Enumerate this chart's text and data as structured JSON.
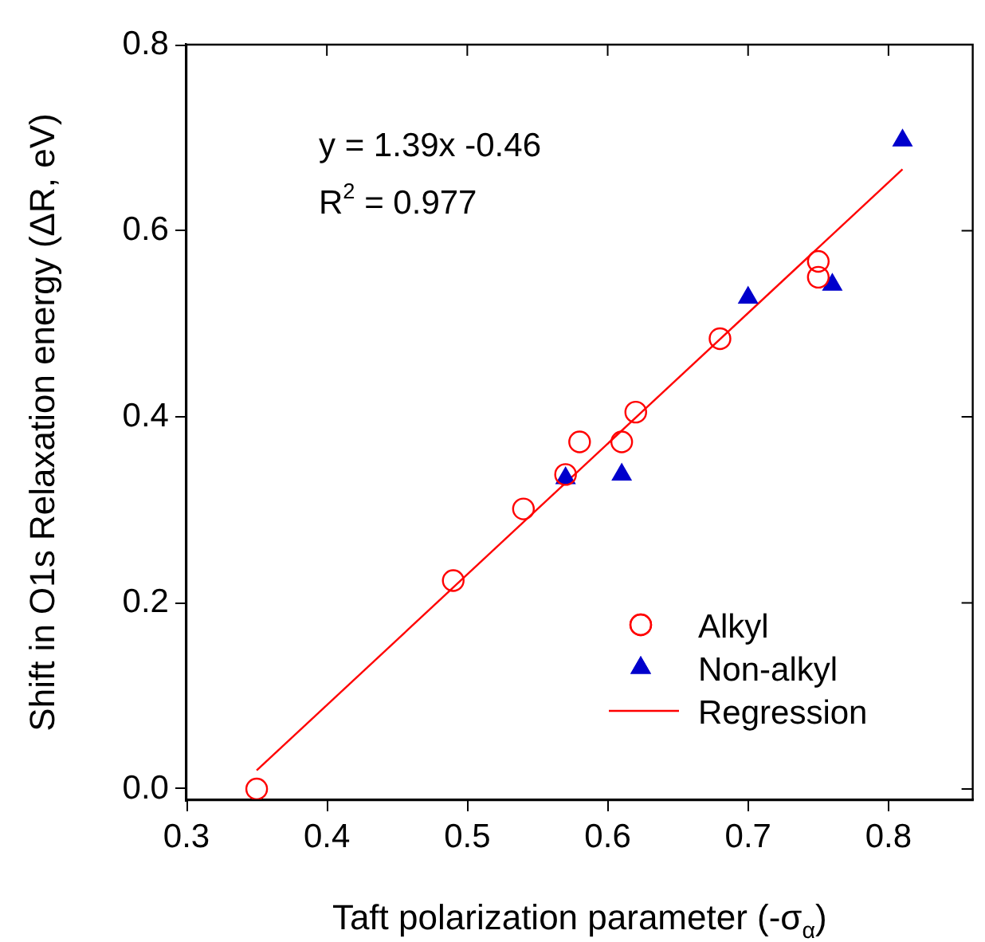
{
  "chart_data": {
    "type": "scatter",
    "xlabel": "Taft polarization parameter (-σ$_{α}$)",
    "ylabel": "Shift in O1s Relaxation energy (ΔR, eV)",
    "annotations": [
      "y = 1.39x -0.46",
      "R$^{2}$ = 0.977"
    ],
    "xlim": [
      0.3,
      0.86
    ],
    "xticks": [
      {
        "value": 0.3,
        "label": "0.3"
      },
      {
        "value": 0.4,
        "label": "0.4"
      },
      {
        "value": 0.5,
        "label": "0.5"
      },
      {
        "value": 0.6,
        "label": "0.6"
      },
      {
        "value": 0.7,
        "label": "0.7"
      },
      {
        "value": 0.8,
        "label": "0.8"
      }
    ],
    "ylim": [
      -0.012,
      0.8
    ],
    "yticks": [
      {
        "value": 0,
        "label": "0.0"
      },
      {
        "value": 0.2,
        "label": "0.2"
      },
      {
        "value": 0.4,
        "label": "0.4"
      },
      {
        "value": 0.6,
        "label": "0.6"
      },
      {
        "value": 0.8,
        "label": "0.8"
      }
    ],
    "grid": false,
    "legend": "bottom right",
    "series": [
      {
        "name": "Alkyl",
        "type": "scatter",
        "marker": "circle",
        "color": "#ff0000",
        "x": [
          0.35,
          0.49,
          0.54,
          0.57,
          0.58,
          0.61,
          0.62,
          0.68,
          0.75,
          0.75
        ],
        "values": [
          0.0,
          0.224,
          0.301,
          0.338,
          0.373,
          0.373,
          0.405,
          0.484,
          0.567,
          0.55
        ]
      },
      {
        "name": "Non-alkyl",
        "type": "scatter",
        "marker": "triangle",
        "color": "#0000cc",
        "x": [
          0.57,
          0.61,
          0.7,
          0.76,
          0.81
        ],
        "values": [
          0.334,
          0.338,
          0.528,
          0.542,
          0.697
        ]
      },
      {
        "name": "Regression",
        "type": "line",
        "marker": "none",
        "line_style": "solid",
        "color": "#ff0000",
        "x": [
          0.35,
          0.81
        ],
        "values": [
          0.02,
          0.666
        ]
      }
    ]
  }
}
